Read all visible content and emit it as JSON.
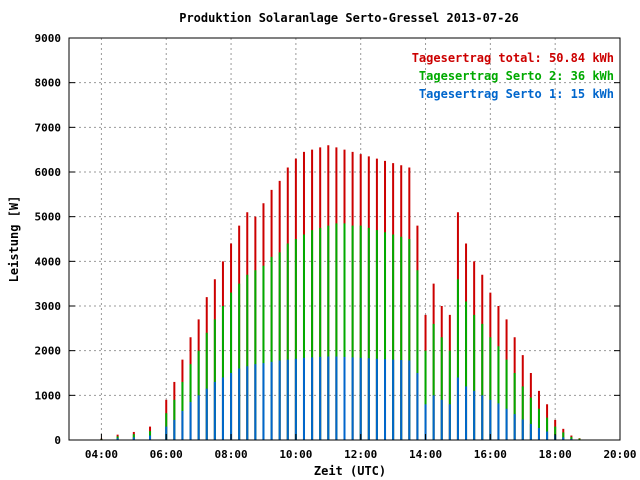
{
  "chart_data": {
    "type": "bar",
    "title": "Produktion Solaranlage Serto-Gressel 2013-07-26",
    "xlabel": "Zeit (UTC)",
    "ylabel": "Leistung [W]",
    "ylim": [
      0,
      9000
    ],
    "yticks": [
      0,
      1000,
      2000,
      3000,
      4000,
      5000,
      6000,
      7000,
      8000,
      9000
    ],
    "xticks": [
      "04:00",
      "06:00",
      "08:00",
      "10:00",
      "12:00",
      "14:00",
      "16:00",
      "18:00",
      "20:00"
    ],
    "x_range_hours": [
      3,
      20
    ],
    "grid": true,
    "legend_position": "top-right",
    "legend": [
      {
        "label": "Tagesertrag total: 50.84 kWh",
        "color": "#cc0000"
      },
      {
        "label": "Tagesertrag Serto 2: 36 kWh",
        "color": "#00aa00"
      },
      {
        "label": "Tagesertrag Serto 1: 15 kWh",
        "color": "#0066cc"
      }
    ],
    "x": [
      "04:00",
      "04:30",
      "05:00",
      "05:30",
      "06:00",
      "06:15",
      "06:30",
      "06:45",
      "07:00",
      "07:15",
      "07:30",
      "07:45",
      "08:00",
      "08:15",
      "08:30",
      "08:45",
      "09:00",
      "09:15",
      "09:30",
      "09:45",
      "10:00",
      "10:15",
      "10:30",
      "10:45",
      "11:00",
      "11:15",
      "11:30",
      "11:45",
      "12:00",
      "12:15",
      "12:30",
      "12:45",
      "13:00",
      "13:15",
      "13:30",
      "13:45",
      "14:00",
      "14:15",
      "14:30",
      "14:45",
      "15:00",
      "15:15",
      "15:30",
      "15:45",
      "16:00",
      "16:15",
      "16:30",
      "16:45",
      "17:00",
      "17:15",
      "17:30",
      "17:45",
      "18:00",
      "18:15",
      "18:30",
      "18:45",
      "19:00"
    ],
    "series": [
      {
        "name": "Tagesertrag total: 50.84 kWh",
        "color": "#cc0000",
        "values": [
          30,
          120,
          180,
          300,
          900,
          1300,
          1800,
          2300,
          2700,
          3200,
          3600,
          4000,
          4400,
          4800,
          5100,
          5000,
          5300,
          5600,
          5800,
          6100,
          6300,
          6450,
          6500,
          6550,
          6600,
          6550,
          6500,
          6450,
          6400,
          6350,
          6300,
          6250,
          6200,
          6150,
          6100,
          4800,
          2800,
          3500,
          3000,
          2800,
          5100,
          4400,
          4000,
          3700,
          3300,
          3000,
          2700,
          2300,
          1900,
          1500,
          1100,
          800,
          450,
          250,
          100,
          40,
          10
        ]
      },
      {
        "name": "Tagesertrag Serto 2: 36 kWh",
        "color": "#00aa00",
        "values": [
          20,
          80,
          130,
          200,
          600,
          900,
          1300,
          1700,
          2000,
          2400,
          2700,
          3000,
          3300,
          3500,
          3700,
          3800,
          3900,
          4100,
          4200,
          4400,
          4500,
          4600,
          4700,
          4750,
          4800,
          4850,
          4850,
          4800,
          4800,
          4750,
          4700,
          4650,
          4600,
          4550,
          4500,
          3800,
          2000,
          2600,
          2300,
          2000,
          3600,
          3100,
          2800,
          2600,
          2300,
          2100,
          1800,
          1500,
          1200,
          950,
          700,
          500,
          300,
          170,
          70,
          30,
          8
        ]
      },
      {
        "name": "Tagesertrag Serto 1: 15 kWh",
        "color": "#0066cc",
        "values": [
          10,
          40,
          60,
          100,
          300,
          450,
          650,
          850,
          1000,
          1150,
          1300,
          1400,
          1500,
          1600,
          1650,
          1700,
          1720,
          1750,
          1780,
          1800,
          1820,
          1840,
          1850,
          1860,
          1870,
          1870,
          1860,
          1850,
          1840,
          1830,
          1820,
          1810,
          1800,
          1790,
          1780,
          1500,
          800,
          1000,
          900,
          800,
          1400,
          1200,
          1100,
          1000,
          900,
          820,
          700,
          580,
          460,
          360,
          270,
          190,
          110,
          60,
          25,
          10,
          3
        ]
      }
    ]
  }
}
